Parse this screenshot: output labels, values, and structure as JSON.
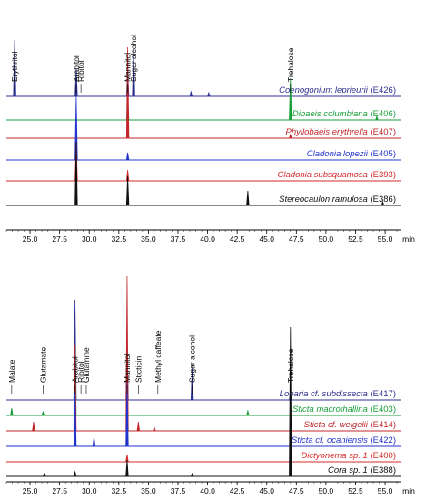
{
  "chart_data": [
    {
      "type": "line",
      "xunit": "min",
      "xlim": [
        23,
        56.3
      ],
      "xticks": [
        "25.0",
        "27.5",
        "30.0",
        "32.5",
        "35.0",
        "37.5",
        "40.0",
        "42.5",
        "45.0",
        "47.5",
        "50.0",
        "52.5",
        "55.0"
      ],
      "peak_labels": [
        {
          "text": "Erythritol",
          "x": 23.7
        },
        {
          "text": "Arabitol",
          "x": 28.9
        },
        {
          "text": "Ribitol",
          "x": 29.3
        },
        {
          "text": "Mannitol",
          "x": 33.25
        },
        {
          "text": "Sugar alcohol",
          "x": 33.75
        },
        {
          "text": "Trehalose",
          "x": 47.0
        }
      ],
      "series": [
        {
          "name": "Coenogonium leprieurii",
          "code": "(E426)",
          "color": "#2e3192",
          "peaks": [
            [
              23.7,
              62
            ],
            [
              28.9,
              30
            ],
            [
              33.25,
              30
            ],
            [
              33.75,
              52
            ],
            [
              38.6,
              5
            ],
            [
              40.1,
              4
            ]
          ]
        },
        {
          "name": "Dibaeis columbiana",
          "code": "(E406)",
          "color": "#1a9e3a",
          "peaks": [
            [
              33.25,
              24
            ],
            [
              47.0,
              46
            ],
            [
              54.3,
              4
            ]
          ]
        },
        {
          "name": "Phyllobaeis erythrella",
          "code": "(E407)",
          "color": "#c0282d",
          "peaks": [
            [
              33.25,
              100
            ],
            [
              47.0,
              4
            ]
          ]
        },
        {
          "name": "Cladonia lopezii",
          "code": "(E405)",
          "color": "#2233cc",
          "peaks": [
            [
              28.9,
              70
            ],
            [
              33.25,
              8
            ]
          ]
        },
        {
          "name": "Cladonia subsquamosa",
          "code": "(E393)",
          "color": "#d42a2a",
          "peaks": [
            [
              28.9,
              42
            ],
            [
              33.25,
              12
            ]
          ]
        },
        {
          "name": "Stereocaulon ramulosa",
          "code": "(E386)",
          "color": "#111111",
          "peaks": [
            [
              28.9,
              70
            ],
            [
              33.25,
              32
            ],
            [
              43.4,
              16
            ],
            [
              54.8,
              4
            ]
          ]
        }
      ]
    },
    {
      "type": "line",
      "xunit": "min",
      "xlim": [
        23,
        56.3
      ],
      "xticks": [
        "25.0",
        "27.5",
        "30.0",
        "32.5",
        "35.0",
        "37.5",
        "40.0",
        "42.5",
        "45.0",
        "47.5",
        "50.0",
        "52.5",
        "55.0"
      ],
      "peak_labels": [
        {
          "text": "Malate",
          "x": 23.45
        },
        {
          "text": "Glutamate",
          "x": 26.1
        },
        {
          "text": "Arabitol",
          "x": 28.8
        },
        {
          "text": "Ribitol",
          "x": 29.3
        },
        {
          "text": "Glutamine",
          "x": 29.75
        },
        {
          "text": "Mannitol",
          "x": 33.2
        },
        {
          "text": "Sticticin",
          "x": 34.15
        },
        {
          "text": "Methyl caffeate",
          "x": 35.8
        },
        {
          "text": "Sugar alcohol",
          "x": 38.7
        },
        {
          "text": "Trehalose",
          "x": 47.0
        }
      ],
      "series": [
        {
          "name": "Lobaria cf. subdissecta",
          "code": "(E417)",
          "color": "#2e3192",
          "peaks": [
            [
              28.8,
              110
            ],
            [
              33.2,
              60
            ],
            [
              38.7,
              36
            ],
            [
              47.0,
              8
            ]
          ]
        },
        {
          "name": "Sticta macrothallina",
          "code": "(E403)",
          "color": "#1a9e3a",
          "peaks": [
            [
              23.45,
              8
            ],
            [
              26.1,
              4
            ],
            [
              28.8,
              75
            ],
            [
              33.2,
              12
            ],
            [
              43.4,
              5
            ]
          ]
        },
        {
          "name": "Sticta cf. weigelii",
          "code": "(E414)",
          "color": "#c0282d",
          "peaks": [
            [
              25.3,
              10
            ],
            [
              28.8,
              95
            ],
            [
              33.2,
              170
            ],
            [
              34.15,
              10
            ],
            [
              35.5,
              4
            ]
          ]
        },
        {
          "name": "Sticta cf. ocaniensis",
          "code": "(E422)",
          "color": "#2233cc",
          "peaks": [
            [
              28.8,
              60
            ],
            [
              30.4,
              10
            ],
            [
              33.2,
              70
            ]
          ]
        },
        {
          "name": "Dictyonema sp. 1",
          "code": "(E400)",
          "color": "#d42a2a",
          "peaks": [
            [
              33.2,
              8
            ],
            [
              47.0,
              4
            ]
          ]
        },
        {
          "name": "Cora sp. 1",
          "code": "(E388)",
          "color": "#111111",
          "peaks": [
            [
              26.2,
              3
            ],
            [
              28.8,
              5
            ],
            [
              33.2,
              18
            ],
            [
              38.7,
              3
            ],
            [
              47.0,
              164
            ]
          ]
        }
      ]
    }
  ]
}
